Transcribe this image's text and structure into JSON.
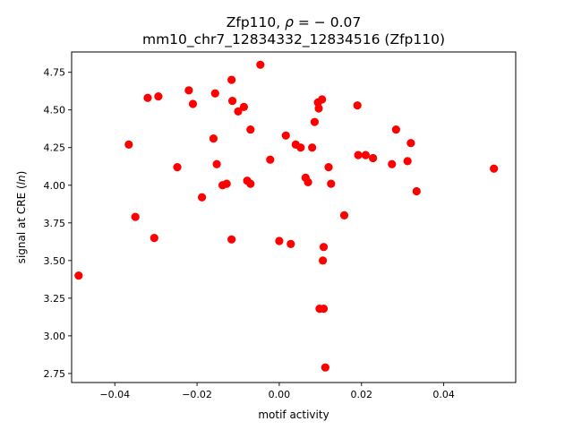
{
  "chart_data": {
    "type": "scatter",
    "title_line1": "Zfp110, ",
    "title_rho_symbol": "ρ",
    "title_rho_value": " = − 0.07",
    "title_line2": "mm10_chr7_12834332_12834516 (Zfp110)",
    "xlabel": "motif activity",
    "ylabel_prefix": "signal at CRE (",
    "ylabel_italic": "ln",
    "ylabel_suffix": ")",
    "xlim": [
      -0.0505,
      0.0575
    ],
    "ylim": [
      2.69,
      4.885
    ],
    "x_ticks": [
      -0.04,
      -0.02,
      0.0,
      0.02,
      0.04
    ],
    "x_tick_labels": [
      "−0.04",
      "−0.02",
      "0.00",
      "0.02",
      "0.04"
    ],
    "y_ticks": [
      2.75,
      3.0,
      3.25,
      3.5,
      3.75,
      4.0,
      4.25,
      4.5,
      4.75
    ],
    "y_tick_labels": [
      "2.75",
      "3.00",
      "3.25",
      "3.50",
      "3.75",
      "4.00",
      "4.25",
      "4.50",
      "4.75"
    ],
    "marker_color": "#ff0000",
    "grid": false,
    "legend": "none",
    "points": [
      {
        "x": -0.0488,
        "y": 3.4
      },
      {
        "x": -0.0366,
        "y": 4.27
      },
      {
        "x": -0.035,
        "y": 3.79
      },
      {
        "x": -0.032,
        "y": 4.58
      },
      {
        "x": -0.0294,
        "y": 4.59
      },
      {
        "x": -0.0304,
        "y": 3.65
      },
      {
        "x": -0.0248,
        "y": 4.12
      },
      {
        "x": -0.022,
        "y": 4.63
      },
      {
        "x": -0.021,
        "y": 4.54
      },
      {
        "x": -0.0188,
        "y": 3.92
      },
      {
        "x": -0.016,
        "y": 4.31
      },
      {
        "x": -0.0156,
        "y": 4.61
      },
      {
        "x": -0.0152,
        "y": 4.14
      },
      {
        "x": -0.0138,
        "y": 4.0
      },
      {
        "x": -0.0128,
        "y": 4.01
      },
      {
        "x": -0.0116,
        "y": 4.7
      },
      {
        "x": -0.0114,
        "y": 4.56
      },
      {
        "x": -0.0116,
        "y": 3.64
      },
      {
        "x": -0.01,
        "y": 4.49
      },
      {
        "x": -0.0086,
        "y": 4.52
      },
      {
        "x": -0.0078,
        "y": 4.03
      },
      {
        "x": -0.007,
        "y": 4.37
      },
      {
        "x": -0.007,
        "y": 4.01
      },
      {
        "x": -0.0046,
        "y": 4.8
      },
      {
        "x": -0.0022,
        "y": 4.17
      },
      {
        "x": 0.0,
        "y": 3.63
      },
      {
        "x": 0.0016,
        "y": 4.33
      },
      {
        "x": 0.0028,
        "y": 3.61
      },
      {
        "x": 0.004,
        "y": 4.27
      },
      {
        "x": 0.0052,
        "y": 4.25
      },
      {
        "x": 0.0064,
        "y": 4.05
      },
      {
        "x": 0.007,
        "y": 4.02
      },
      {
        "x": 0.008,
        "y": 4.25
      },
      {
        "x": 0.0086,
        "y": 4.42
      },
      {
        "x": 0.0094,
        "y": 4.55
      },
      {
        "x": 0.0096,
        "y": 4.51
      },
      {
        "x": 0.0104,
        "y": 4.57
      },
      {
        "x": 0.0098,
        "y": 3.18
      },
      {
        "x": 0.0108,
        "y": 3.18
      },
      {
        "x": 0.0108,
        "y": 3.59
      },
      {
        "x": 0.0106,
        "y": 3.5
      },
      {
        "x": 0.0112,
        "y": 2.79
      },
      {
        "x": 0.012,
        "y": 4.12
      },
      {
        "x": 0.0126,
        "y": 4.01
      },
      {
        "x": 0.0158,
        "y": 3.8
      },
      {
        "x": 0.019,
        "y": 4.53
      },
      {
        "x": 0.0192,
        "y": 4.2
      },
      {
        "x": 0.021,
        "y": 4.2
      },
      {
        "x": 0.0228,
        "y": 4.18
      },
      {
        "x": 0.0274,
        "y": 4.14
      },
      {
        "x": 0.0284,
        "y": 4.37
      },
      {
        "x": 0.0312,
        "y": 4.16
      },
      {
        "x": 0.032,
        "y": 4.28
      },
      {
        "x": 0.0334,
        "y": 3.96
      },
      {
        "x": 0.0522,
        "y": 4.11
      }
    ]
  }
}
